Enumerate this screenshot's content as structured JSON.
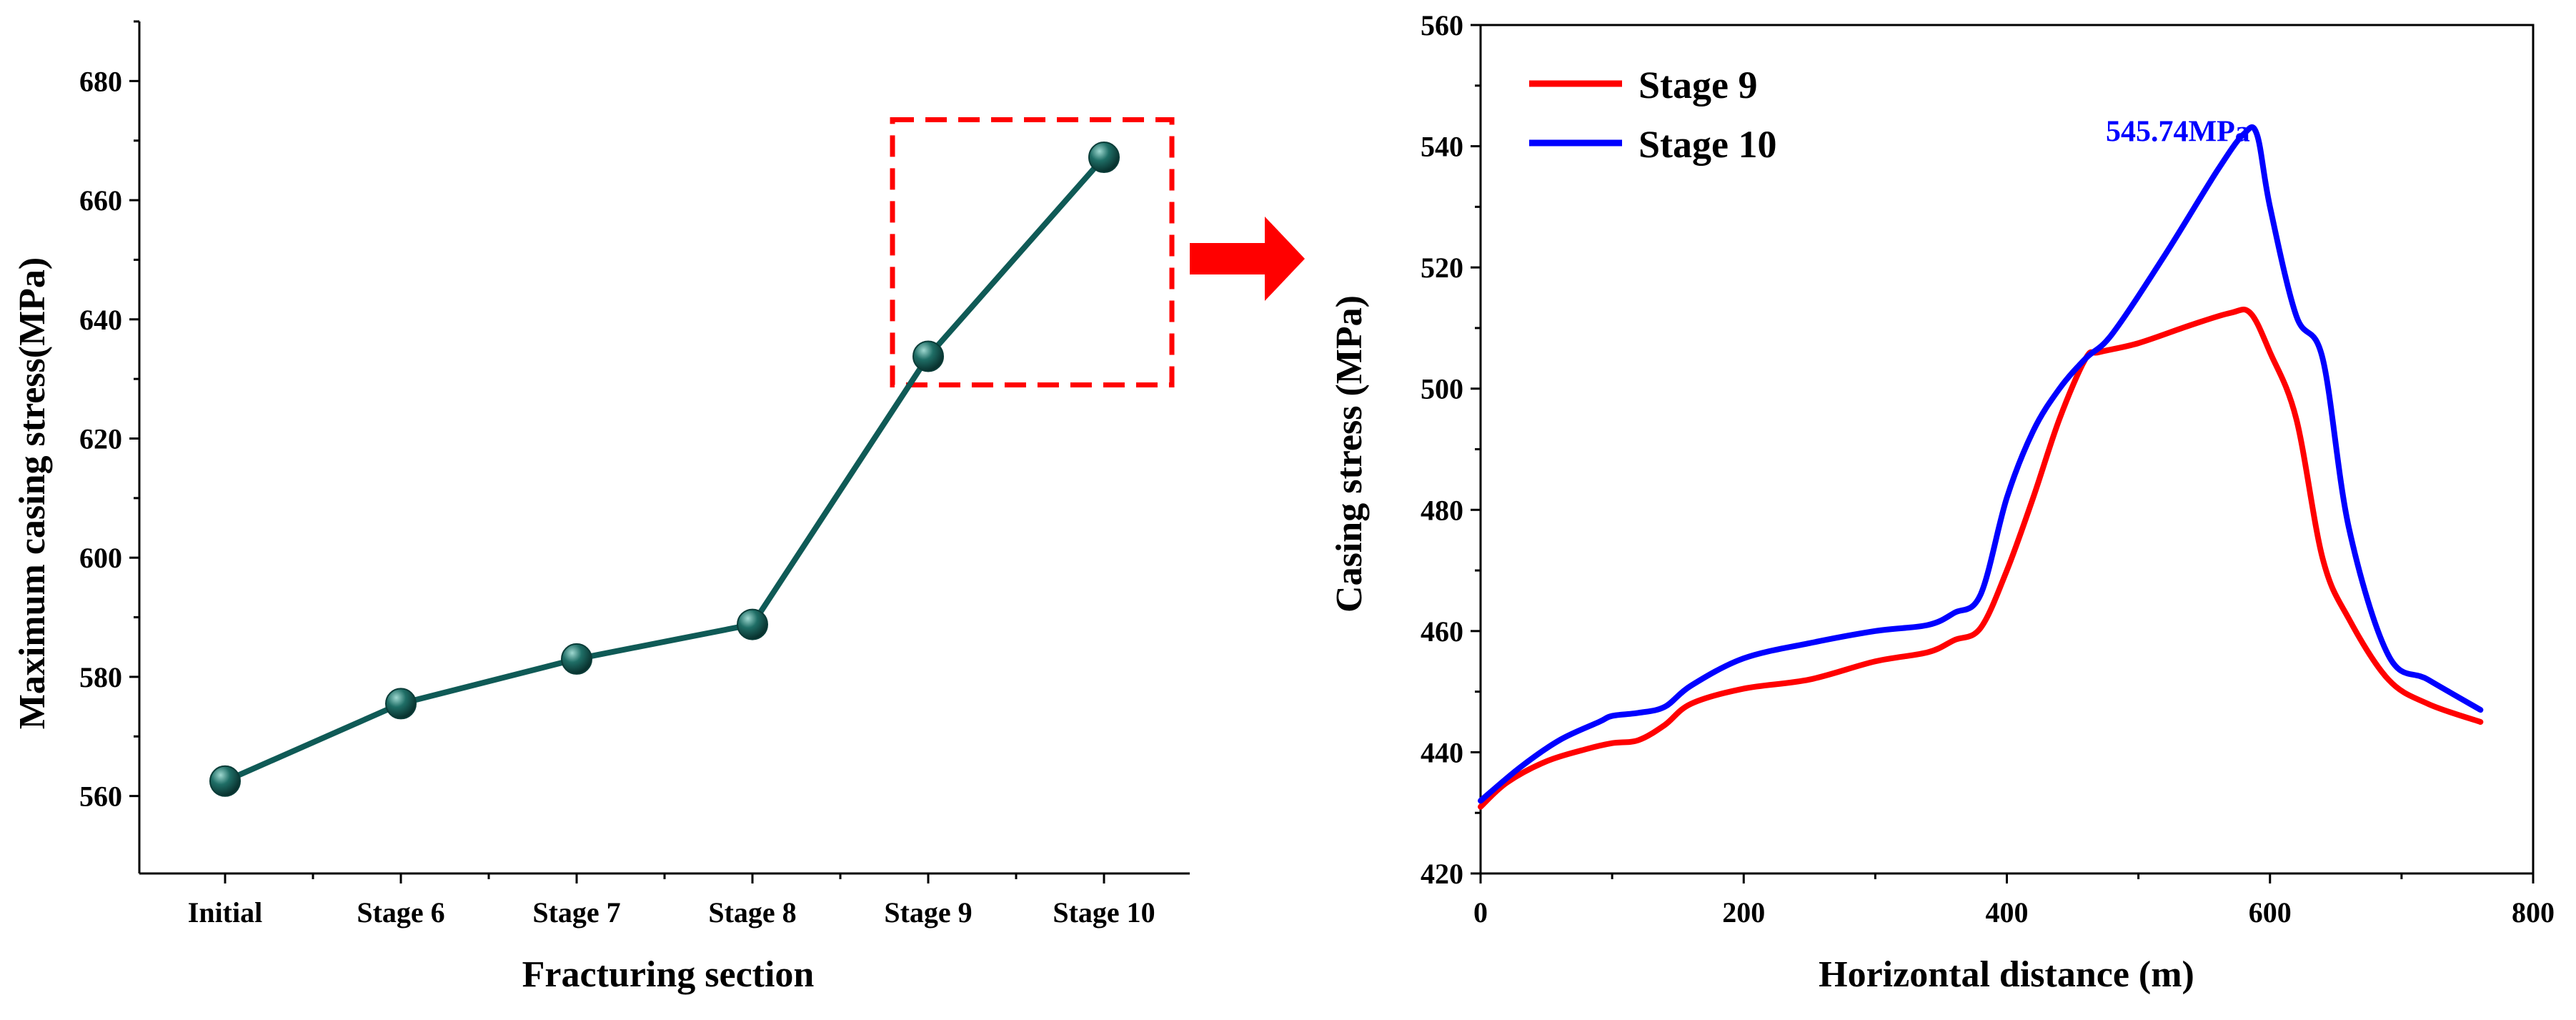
{
  "colors": {
    "left_line": "#0f5a56",
    "marker_fill": "#1f6e66",
    "marker_highlight": "#9fd8d0",
    "highlight_box": "#ff0000",
    "arrow": "#ff0000",
    "stage9_line": "#ff0000",
    "stage10_line": "#0000ff",
    "annotation": "#0000ff"
  },
  "chart_data": [
    {
      "id": "left",
      "type": "line",
      "title": "",
      "xlabel": "Fracturing section",
      "ylabel": "Maximum casing stress(MPa)",
      "categories": [
        "Initial",
        "Stage 6",
        "Stage 7",
        "Stage 8",
        "Stage 9",
        "Stage 10"
      ],
      "values": [
        562.5,
        575.5,
        583.0,
        588.8,
        633.8,
        667.2
      ],
      "ylim": [
        547,
        690
      ],
      "yticks": [
        560,
        580,
        600,
        620,
        640,
        660,
        680
      ],
      "grid": false,
      "highlight_box": {
        "from_category": "Stage 9",
        "to_category": "Stage 10",
        "y_range": [
          629,
          673.5
        ]
      },
      "arrow": "points right toward the Stage 9 / Stage 10 detail chart"
    },
    {
      "id": "right",
      "type": "line",
      "title": "",
      "xlabel": "Horizontal distance (m)",
      "ylabel": "Casing stress (MPa)",
      "xlim": [
        0,
        800
      ],
      "ylim": [
        420,
        560
      ],
      "xticks": [
        0,
        200,
        400,
        600,
        800
      ],
      "yticks": [
        420,
        440,
        460,
        480,
        500,
        520,
        540,
        560
      ],
      "grid": false,
      "legend_position": "top-left",
      "series": [
        {
          "name": "Stage 9",
          "color": "#ff0000",
          "x": [
            0,
            20,
            50,
            80,
            100,
            120,
            140,
            160,
            200,
            250,
            300,
            340,
            360,
            380,
            400,
            420,
            440,
            460,
            470,
            500,
            540,
            570,
            585,
            600,
            620,
            640,
            660,
            690,
            720,
            760
          ],
          "y": [
            431,
            435,
            438.5,
            440.5,
            441.5,
            442,
            444.5,
            448,
            450.5,
            452,
            455,
            456.5,
            458.5,
            460.5,
            470,
            482,
            495,
            505,
            506,
            507.5,
            510.5,
            512.5,
            512.5,
            506,
            495,
            472,
            462,
            452,
            448,
            445
          ]
        },
        {
          "name": "Stage 10",
          "color": "#0000ff",
          "x": [
            0,
            30,
            60,
            90,
            100,
            120,
            140,
            160,
            200,
            250,
            300,
            340,
            360,
            380,
            400,
            420,
            440,
            460,
            480,
            520,
            560,
            580,
            590,
            600,
            620,
            640,
            660,
            690,
            720,
            760
          ],
          "y": [
            432,
            437.5,
            442,
            445,
            446,
            446.5,
            447.5,
            451,
            455.5,
            458,
            460,
            461,
            463,
            466,
            482,
            493,
            500,
            505,
            509,
            522,
            536,
            542,
            542,
            530,
            512,
            505,
            477,
            456,
            452,
            447
          ]
        }
      ],
      "annotations": [
        {
          "text": "545.74MPa",
          "x": 530,
          "y": 542.5,
          "color": "#0000ff"
        }
      ]
    }
  ]
}
